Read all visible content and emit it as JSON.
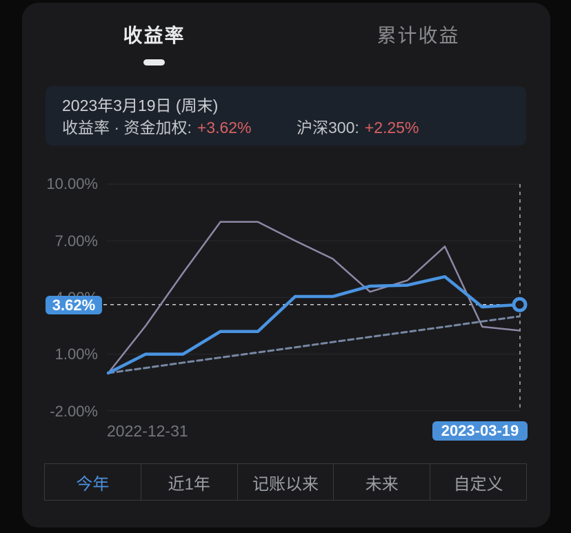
{
  "header": {
    "tabs": [
      {
        "label": "收益率",
        "active": true
      },
      {
        "label": "累计收益",
        "active": false
      }
    ]
  },
  "info_card": {
    "date_line": "2023年3月19日 (周末)",
    "metric_label": "收益率 · 资金加权:",
    "metric_value": "+3.62%",
    "benchmark_label": "沪深300:",
    "benchmark_value": "+2.25%",
    "value_color": "#d96161"
  },
  "chart_data": {
    "type": "line",
    "x_start_label": "2022-12-31",
    "x_end_label": "2023-03-19",
    "ylim": [
      -2,
      10
    ],
    "grid": true,
    "legend": false,
    "yticks": [
      {
        "value": 10,
        "label": "10.00%"
      },
      {
        "value": 7,
        "label": "7.00%"
      },
      {
        "value": 4,
        "label": "4.00%"
      },
      {
        "value": 1,
        "label": "1.00%"
      },
      {
        "value": -2,
        "label": "-2.00%"
      }
    ],
    "series": [
      {
        "key": "weighted-return",
        "name": "收益率·资金加权",
        "color": "#4a94e2",
        "width": 4.5,
        "dash": null,
        "values": [
          0.0,
          1.0,
          1.0,
          2.2,
          2.2,
          4.05,
          4.05,
          4.6,
          4.65,
          5.1,
          3.5,
          3.62
        ]
      },
      {
        "key": "csi300",
        "name": "沪深300",
        "color": "#8e88a6",
        "width": 2.5,
        "dash": null,
        "values": [
          0.0,
          2.5,
          5.3,
          8.0,
          8.0,
          7.0,
          6.05,
          4.3,
          4.9,
          6.7,
          2.45,
          2.25
        ]
      },
      {
        "key": "reference-line",
        "name": "reference-line",
        "color": "#7787a3",
        "width": 3,
        "dash": "8 5",
        "values": [
          0.0,
          0.27,
          0.55,
          0.82,
          1.09,
          1.36,
          1.64,
          1.91,
          2.18,
          2.45,
          2.73,
          3.0
        ]
      }
    ],
    "current_point": {
      "value": 3.62,
      "value_label": "3.62%",
      "date_label": "2023-03-19"
    },
    "colors": {
      "gridline": "#29292d",
      "crosshair_vertical": "#8b8b91",
      "current_dashed": "#cdced2",
      "marker_stroke": "#4a94e2",
      "marker_fill": "#1b1b1e"
    }
  },
  "range_tabs": [
    {
      "label": "今年",
      "active": true
    },
    {
      "label": "近1年",
      "active": false
    },
    {
      "label": "记账以来",
      "active": false
    },
    {
      "label": "未来",
      "active": false
    },
    {
      "label": "自定义",
      "active": false
    }
  ]
}
